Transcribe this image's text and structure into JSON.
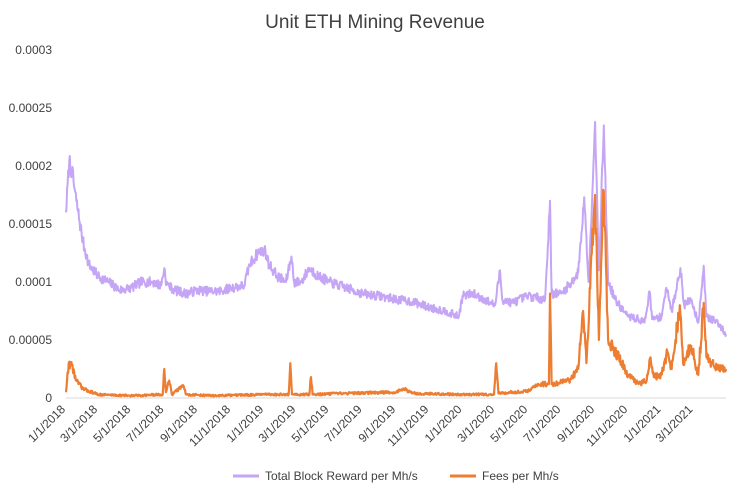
{
  "chart_data": {
    "type": "line",
    "title": "Unit ETH Mining Revenue",
    "xlabel": "",
    "ylabel": "",
    "ylim": [
      0,
      0.0003
    ],
    "yticks": [
      "0",
      "0.00005",
      "0.0001",
      "0.00015",
      "0.0002",
      "0.00025",
      "0.0003"
    ],
    "xlim": [
      "2018-01-01",
      "2021-04-30"
    ],
    "xticks": [
      "1/1/2018",
      "3/1/2018",
      "5/1/2018",
      "7/1/2018",
      "9/1/2018",
      "11/1/2018",
      "1/1/2019",
      "3/1/2019",
      "5/1/2019",
      "7/1/2019",
      "9/1/2019",
      "11/1/2019",
      "1/1/2020",
      "3/1/2020",
      "5/1/2020",
      "7/1/2020",
      "9/1/2020",
      "11/1/2020",
      "1/1/2021",
      "3/1/2021"
    ],
    "grid": false,
    "legend": "bottom",
    "colors": {
      "reward": "#c5a5f5",
      "fees": "#ed7d31"
    },
    "series": [
      {
        "name": "Total Block Reward per Mh/s",
        "color": "#c5a5f5",
        "points": [
          [
            "2018-01-01",
            0.00016
          ],
          [
            "2018-01-07",
            0.000205
          ],
          [
            "2018-01-12",
            0.000195
          ],
          [
            "2018-01-20",
            0.00017
          ],
          [
            "2018-02-01",
            0.000135
          ],
          [
            "2018-02-12",
            0.000115
          ],
          [
            "2018-03-01",
            0.000105
          ],
          [
            "2018-03-20",
            0.0001
          ],
          [
            "2018-04-10",
            9.3e-05
          ],
          [
            "2018-05-01",
            9.5e-05
          ],
          [
            "2018-05-20",
            0.0001
          ],
          [
            "2018-06-10",
            0.0001
          ],
          [
            "2018-06-25",
            9.7e-05
          ],
          [
            "2018-07-01",
            0.000112
          ],
          [
            "2018-07-05",
            9.8e-05
          ],
          [
            "2018-07-20",
            9.3e-05
          ],
          [
            "2018-08-10",
            9e-05
          ],
          [
            "2018-09-01",
            9.3e-05
          ],
          [
            "2018-09-20",
            9.2e-05
          ],
          [
            "2018-10-10",
            9.2e-05
          ],
          [
            "2018-11-01",
            9.5e-05
          ],
          [
            "2018-11-25",
            9.7e-05
          ],
          [
            "2018-12-05",
            0.000115
          ],
          [
            "2018-12-20",
            0.000125
          ],
          [
            "2019-01-01",
            0.000128
          ],
          [
            "2019-01-10",
            0.000115
          ],
          [
            "2019-01-25",
            0.000105
          ],
          [
            "2019-02-10",
            0.0001
          ],
          [
            "2019-02-20",
            0.000122
          ],
          [
            "2019-02-25",
            0.0001
          ],
          [
            "2019-03-10",
            0.0001
          ],
          [
            "2019-03-25",
            0.000112
          ],
          [
            "2019-04-10",
            0.000105
          ],
          [
            "2019-05-01",
            0.0001
          ],
          [
            "2019-06-01",
            9.5e-05
          ],
          [
            "2019-07-01",
            9e-05
          ],
          [
            "2019-08-01",
            8.8e-05
          ],
          [
            "2019-09-01",
            8.5e-05
          ],
          [
            "2019-10-01",
            8.3e-05
          ],
          [
            "2019-11-01",
            7.8e-05
          ],
          [
            "2019-12-01",
            7.5e-05
          ],
          [
            "2019-12-25",
            7e-05
          ],
          [
            "2020-01-01",
            8.8e-05
          ],
          [
            "2020-01-20",
            9e-05
          ],
          [
            "2020-02-10",
            8.5e-05
          ],
          [
            "2020-03-01",
            8e-05
          ],
          [
            "2020-03-10",
            0.00011
          ],
          [
            "2020-03-14",
            8.5e-05
          ],
          [
            "2020-04-01",
            8.2e-05
          ],
          [
            "2020-05-01",
            8.8e-05
          ],
          [
            "2020-06-01",
            8.5e-05
          ],
          [
            "2020-06-10",
            0.00017
          ],
          [
            "2020-06-13",
            9e-05
          ],
          [
            "2020-07-01",
            9e-05
          ],
          [
            "2020-07-20",
            0.0001
          ],
          [
            "2020-08-01",
            0.000108
          ],
          [
            "2020-08-12",
            0.000173
          ],
          [
            "2020-08-20",
            0.0001
          ],
          [
            "2020-09-01",
            0.000238
          ],
          [
            "2020-09-08",
            0.00011
          ],
          [
            "2020-09-17",
            0.000235
          ],
          [
            "2020-09-25",
            0.0001
          ],
          [
            "2020-10-10",
            8.3e-05
          ],
          [
            "2020-11-01",
            7e-05
          ],
          [
            "2020-11-20",
            6.8e-05
          ],
          [
            "2020-12-01",
            6.5e-05
          ],
          [
            "2020-12-10",
            9.2e-05
          ],
          [
            "2020-12-15",
            6.8e-05
          ],
          [
            "2021-01-01",
            7e-05
          ],
          [
            "2021-01-10",
            9.5e-05
          ],
          [
            "2021-01-20",
            7.5e-05
          ],
          [
            "2021-02-05",
            0.000112
          ],
          [
            "2021-02-12",
            8e-05
          ],
          [
            "2021-02-25",
            8.5e-05
          ],
          [
            "2021-03-10",
            6.5e-05
          ],
          [
            "2021-03-20",
            0.000114
          ],
          [
            "2021-03-25",
            7e-05
          ],
          [
            "2021-04-15",
            6.5e-05
          ],
          [
            "2021-04-30",
            5.5e-05
          ]
        ]
      },
      {
        "name": "Fees per Mh/s",
        "color": "#ed7d31",
        "points": [
          [
            "2018-01-01",
            5e-06
          ],
          [
            "2018-01-06",
            3e-05
          ],
          [
            "2018-01-12",
            2.8e-05
          ],
          [
            "2018-01-20",
            1.5e-05
          ],
          [
            "2018-02-01",
            8e-06
          ],
          [
            "2018-03-01",
            3e-06
          ],
          [
            "2018-05-01",
            2e-06
          ],
          [
            "2018-06-28",
            3e-06
          ],
          [
            "2018-07-01",
            2.5e-05
          ],
          [
            "2018-07-04",
            5e-06
          ],
          [
            "2018-07-10",
            1.5e-05
          ],
          [
            "2018-07-15",
            3e-06
          ],
          [
            "2018-08-05",
            1.1e-05
          ],
          [
            "2018-08-10",
            3e-06
          ],
          [
            "2018-10-01",
            2e-06
          ],
          [
            "2019-01-01",
            3e-06
          ],
          [
            "2019-02-15",
            3e-06
          ],
          [
            "2019-02-18",
            3e-05
          ],
          [
            "2019-02-21",
            3e-06
          ],
          [
            "2019-03-25",
            3e-06
          ],
          [
            "2019-03-28",
            1.8e-05
          ],
          [
            "2019-03-31",
            3e-06
          ],
          [
            "2019-06-01",
            4e-06
          ],
          [
            "2019-09-01",
            5e-06
          ],
          [
            "2019-09-15",
            8e-06
          ],
          [
            "2019-10-01",
            4e-06
          ],
          [
            "2020-01-01",
            3e-06
          ],
          [
            "2020-02-28",
            3e-06
          ],
          [
            "2020-03-03",
            3e-05
          ],
          [
            "2020-03-07",
            4e-06
          ],
          [
            "2020-05-01",
            6e-06
          ],
          [
            "2020-05-20",
            1.2e-05
          ],
          [
            "2020-06-08",
            1.2e-05
          ],
          [
            "2020-06-10",
            9e-05
          ],
          [
            "2020-06-13",
            1.2e-05
          ],
          [
            "2020-07-15",
            1.5e-05
          ],
          [
            "2020-08-01",
            2.5e-05
          ],
          [
            "2020-08-10",
            7.5e-05
          ],
          [
            "2020-08-16",
            3e-05
          ],
          [
            "2020-09-01",
            0.000175
          ],
          [
            "2020-09-08",
            5e-05
          ],
          [
            "2020-09-17",
            0.000178
          ],
          [
            "2020-09-25",
            5e-05
          ],
          [
            "2020-10-15",
            3.5e-05
          ],
          [
            "2020-11-01",
            2e-05
          ],
          [
            "2020-11-20",
            1.2e-05
          ],
          [
            "2020-12-05",
            1.5e-05
          ],
          [
            "2020-12-12",
            3.5e-05
          ],
          [
            "2020-12-18",
            1.8e-05
          ],
          [
            "2021-01-01",
            2e-05
          ],
          [
            "2021-01-12",
            4e-05
          ],
          [
            "2021-01-20",
            2.5e-05
          ],
          [
            "2021-02-04",
            8e-05
          ],
          [
            "2021-02-10",
            3e-05
          ],
          [
            "2021-02-25",
            4.5e-05
          ],
          [
            "2021-03-10",
            2e-05
          ],
          [
            "2021-03-20",
            8.2e-05
          ],
          [
            "2021-03-25",
            3.5e-05
          ],
          [
            "2021-04-15",
            2.5e-05
          ],
          [
            "2021-04-30",
            2.5e-05
          ]
        ]
      }
    ]
  }
}
